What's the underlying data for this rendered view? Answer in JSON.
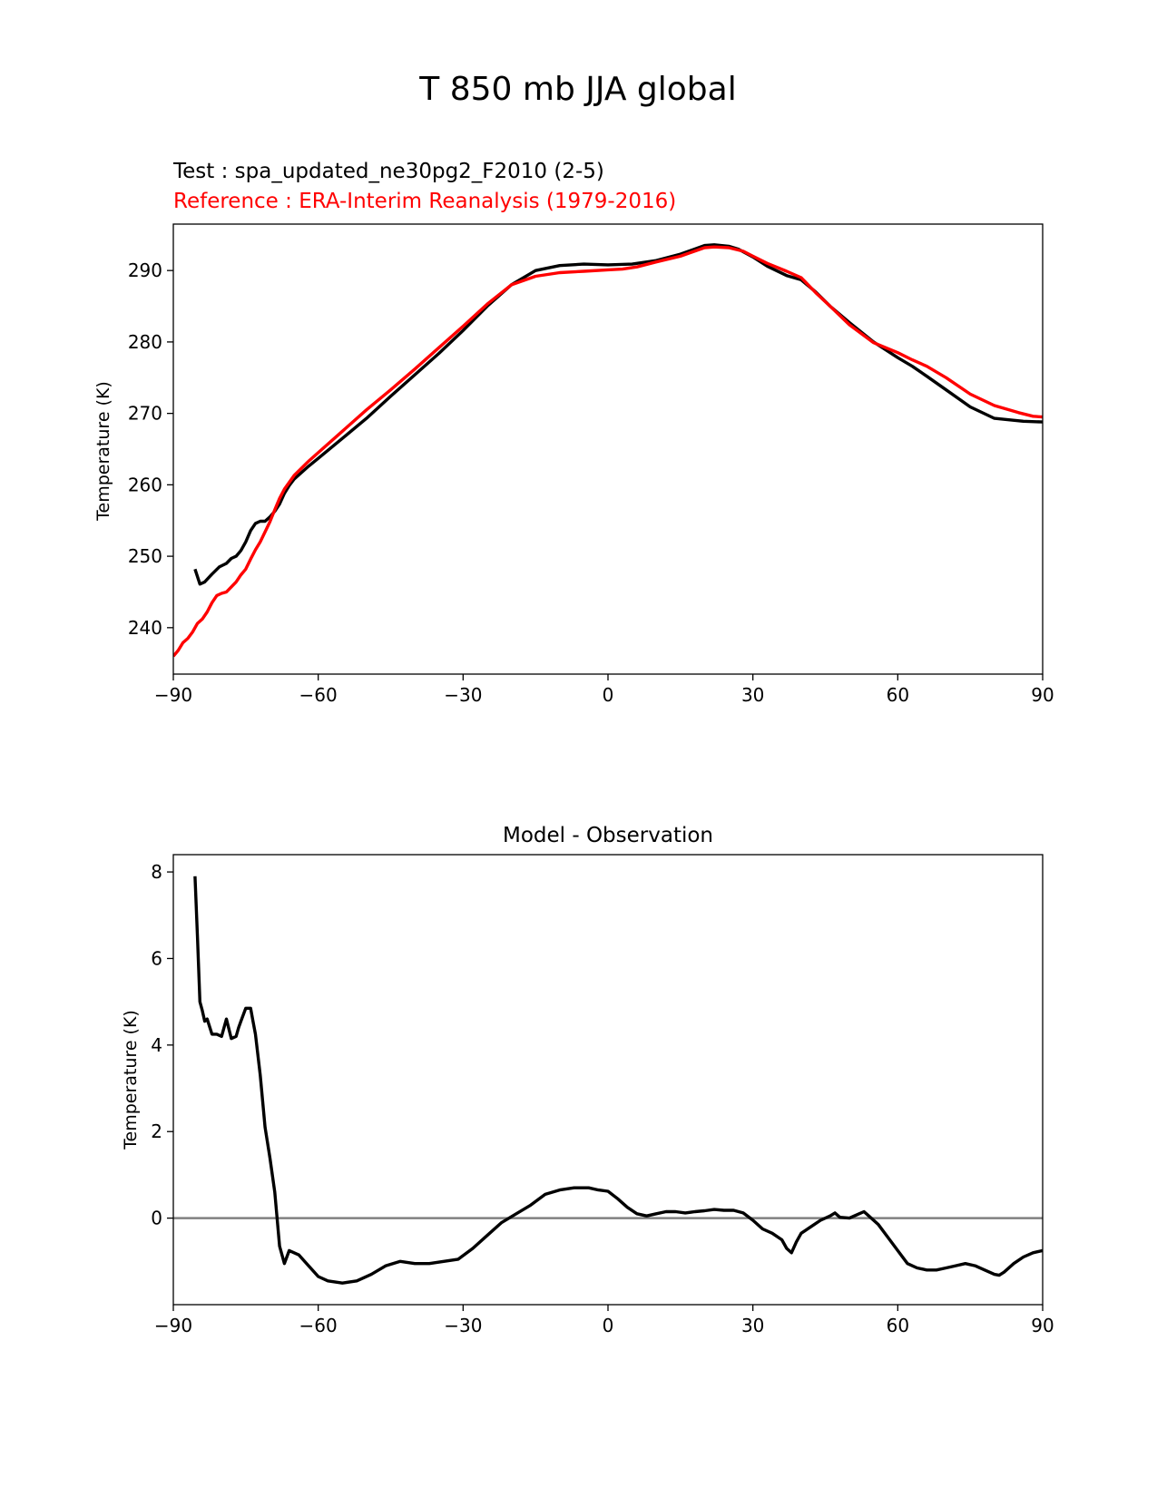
{
  "figure": {
    "title": "T 850 mb JJA global"
  },
  "chart_data": [
    {
      "type": "line",
      "subtitle_test": "Test : spa_updated_ne30pg2_F2010 (2-5)",
      "subtitle_reference": "Reference : ERA-Interim Reanalysis (1979-2016)",
      "xlabel": "",
      "ylabel": "Temperature (K)",
      "xlim": [
        -90,
        90
      ],
      "ylim": [
        233.5,
        296.5
      ],
      "xticks": [
        -90,
        -60,
        -30,
        0,
        30,
        60,
        90
      ],
      "xtick_labels": [
        "−90",
        "−60",
        "−30",
        "0",
        "30",
        "60",
        "90"
      ],
      "yticks": [
        240,
        250,
        260,
        270,
        280,
        290
      ],
      "ytick_labels": [
        "240",
        "250",
        "260",
        "270",
        "280",
        "290"
      ],
      "colors": {
        "test": "#000000",
        "reference": "#ff0000"
      },
      "series": [
        {
          "name": "Test",
          "color": "#000000",
          "x": [
            -85.5,
            -84.5,
            -83.5,
            -82,
            -80.5,
            -79,
            -78,
            -77,
            -76,
            -75,
            -74,
            -73,
            -72,
            -71,
            -70,
            -69,
            -68,
            -67,
            -66,
            -65,
            -62,
            -60,
            -55,
            -50,
            -45,
            -40,
            -35,
            -30,
            -25,
            -20,
            -15,
            -10,
            -5,
            0,
            5,
            10,
            15,
            20,
            22,
            25,
            27,
            30,
            33,
            37,
            40,
            43,
            46,
            50,
            55,
            60,
            63,
            66,
            70,
            75,
            80,
            83,
            86,
            90
          ],
          "y": [
            248.2,
            246.1,
            246.4,
            247.5,
            248.5,
            249.0,
            249.7,
            250.0,
            250.8,
            252.0,
            253.6,
            254.6,
            254.9,
            254.9,
            255.5,
            256.3,
            257.3,
            258.8,
            259.9,
            260.8,
            262.6,
            263.7,
            266.5,
            269.3,
            272.4,
            275.4,
            278.4,
            281.6,
            285.0,
            288.0,
            290.0,
            290.7,
            290.9,
            290.8,
            290.9,
            291.4,
            292.3,
            293.5,
            293.6,
            293.4,
            293.0,
            291.9,
            290.6,
            289.3,
            288.7,
            287.0,
            285.0,
            282.7,
            280.0,
            277.8,
            276.6,
            275.2,
            273.3,
            270.9,
            269.3,
            269.1,
            268.9,
            268.8
          ]
        },
        {
          "name": "Reference",
          "color": "#ff0000",
          "x": [
            -90,
            -89,
            -88,
            -87,
            -86,
            -85,
            -84,
            -83,
            -82,
            -81,
            -80,
            -79,
            -78,
            -77,
            -76,
            -75,
            -74,
            -73,
            -72,
            -71,
            -70,
            -69,
            -68,
            -67,
            -65,
            -62,
            -60,
            -55,
            -50,
            -45,
            -40,
            -35,
            -30,
            -25,
            -20,
            -15,
            -10,
            -5,
            0,
            3,
            6,
            10,
            15,
            20,
            22,
            25,
            28,
            30,
            33,
            37,
            40,
            43,
            46,
            50,
            55,
            60,
            63,
            66,
            70,
            75,
            80,
            85,
            88,
            90
          ],
          "y": [
            236.0,
            236.8,
            237.9,
            238.5,
            239.4,
            240.6,
            241.2,
            242.2,
            243.5,
            244.5,
            244.8,
            245.0,
            245.7,
            246.4,
            247.4,
            248.2,
            249.6,
            250.9,
            252.0,
            253.4,
            254.8,
            256.5,
            258.1,
            259.4,
            261.3,
            263.3,
            264.5,
            267.5,
            270.5,
            273.3,
            276.2,
            279.2,
            282.2,
            285.3,
            288.0,
            289.2,
            289.7,
            289.9,
            290.1,
            290.2,
            290.5,
            291.2,
            292.0,
            293.2,
            293.3,
            293.2,
            292.7,
            292.0,
            291.0,
            289.9,
            289.0,
            286.9,
            285.0,
            282.4,
            279.9,
            278.5,
            277.5,
            276.6,
            275.0,
            272.7,
            271.1,
            270.1,
            269.6,
            269.5
          ]
        }
      ]
    },
    {
      "type": "line",
      "title": "Model - Observation",
      "xlabel": "",
      "ylabel": "Temperature (K)",
      "xlim": [
        -90,
        90
      ],
      "ylim": [
        -2.0,
        8.4
      ],
      "xticks": [
        -90,
        -60,
        -30,
        0,
        30,
        60,
        90
      ],
      "xtick_labels": [
        "−90",
        "−60",
        "−30",
        "0",
        "30",
        "60",
        "90"
      ],
      "yticks": [
        0,
        2,
        4,
        6,
        8
      ],
      "ytick_labels": [
        "0",
        "2",
        "4",
        "6",
        "8"
      ],
      "zero_line": {
        "y": 0,
        "color": "#808080"
      },
      "series": [
        {
          "name": "Model - Observation",
          "color": "#000000",
          "x": [
            -85.5,
            -85,
            -84.5,
            -84,
            -83.5,
            -83,
            -82,
            -81,
            -80,
            -79,
            -78,
            -77,
            -76.5,
            -76,
            -75,
            -74,
            -73.5,
            -73,
            -72,
            -71,
            -70,
            -69,
            -68,
            -67,
            -66,
            -64,
            -62,
            -60,
            -58,
            -55,
            -52,
            -49,
            -46,
            -43,
            -40,
            -37,
            -34,
            -31,
            -28,
            -25,
            -22,
            -19,
            -16,
            -13,
            -10,
            -7,
            -4,
            -2,
            0,
            2,
            4,
            6,
            8,
            10,
            12,
            14,
            16,
            18,
            20,
            22,
            24,
            26,
            28,
            30,
            32,
            34,
            36,
            37,
            38,
            39,
            40,
            42,
            44,
            46,
            47,
            48,
            50,
            51,
            52,
            53,
            54,
            56,
            58,
            60,
            62,
            64,
            66,
            68,
            70,
            72,
            74,
            76,
            78,
            80,
            81,
            82,
            84,
            86,
            88,
            90
          ],
          "y": [
            7.9,
            6.5,
            5.0,
            4.8,
            4.55,
            4.6,
            4.25,
            4.25,
            4.2,
            4.6,
            4.15,
            4.2,
            4.4,
            4.55,
            4.85,
            4.85,
            4.55,
            4.25,
            3.3,
            2.1,
            1.4,
            0.6,
            -0.65,
            -1.05,
            -0.75,
            -0.85,
            -1.1,
            -1.35,
            -1.45,
            -1.5,
            -1.45,
            -1.3,
            -1.1,
            -1.0,
            -1.05,
            -1.05,
            -1.0,
            -0.95,
            -0.7,
            -0.4,
            -0.1,
            0.1,
            0.3,
            0.55,
            0.65,
            0.7,
            0.7,
            0.65,
            0.62,
            0.45,
            0.25,
            0.1,
            0.05,
            0.1,
            0.15,
            0.15,
            0.12,
            0.15,
            0.17,
            0.2,
            0.18,
            0.18,
            0.12,
            -0.05,
            -0.25,
            -0.35,
            -0.5,
            -0.7,
            -0.8,
            -0.55,
            -0.35,
            -0.2,
            -0.05,
            0.05,
            0.12,
            0.02,
            0.0,
            0.05,
            0.1,
            0.15,
            0.05,
            -0.15,
            -0.45,
            -0.75,
            -1.05,
            -1.15,
            -1.2,
            -1.2,
            -1.15,
            -1.1,
            -1.05,
            -1.1,
            -1.2,
            -1.3,
            -1.32,
            -1.25,
            -1.05,
            -0.9,
            -0.8,
            -0.75
          ]
        }
      ]
    }
  ]
}
